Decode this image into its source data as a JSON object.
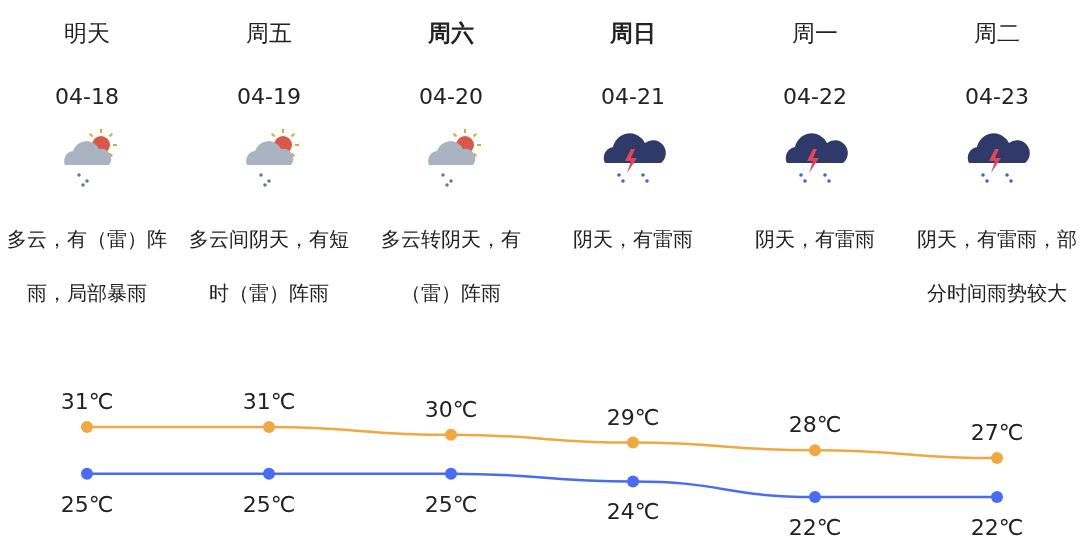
{
  "chart_data": {
    "type": "line",
    "categories": [
      "明天",
      "周五",
      "**周六**",
      "**周日**",
      "周一",
      "周二"
    ],
    "series": [
      {
        "color": "#f0a843",
        "values": [
          31,
          31,
          30,
          29,
          28,
          27
        ],
        "value_labels": [
          "31℃",
          "31℃",
          "30℃",
          "29℃",
          "28℃",
          "27℃"
        ]
      },
      {
        "color": "#4a6cf0",
        "values": [
          25,
          25,
          25,
          24,
          22,
          22
        ],
        "value_labels": [
          "25℃",
          "25℃",
          "25℃",
          "24℃",
          "22℃",
          "22℃"
        ]
      }
    ],
    "marker": "circle",
    "annotations": [
      "04-18",
      "04-19",
      "04-20",
      "04-21",
      "04-22",
      "04-23",
      "多云，有（雷）阵雨，局部暴雨",
      "多云间阴天，有短时（雷）阵雨",
      "多云转阴天，有（雷）阵雨",
      "阴天，有雷雨",
      "阴天，有雷雨",
      "阴天，有雷雨，部分时间雨势较大"
    ]
  }
}
